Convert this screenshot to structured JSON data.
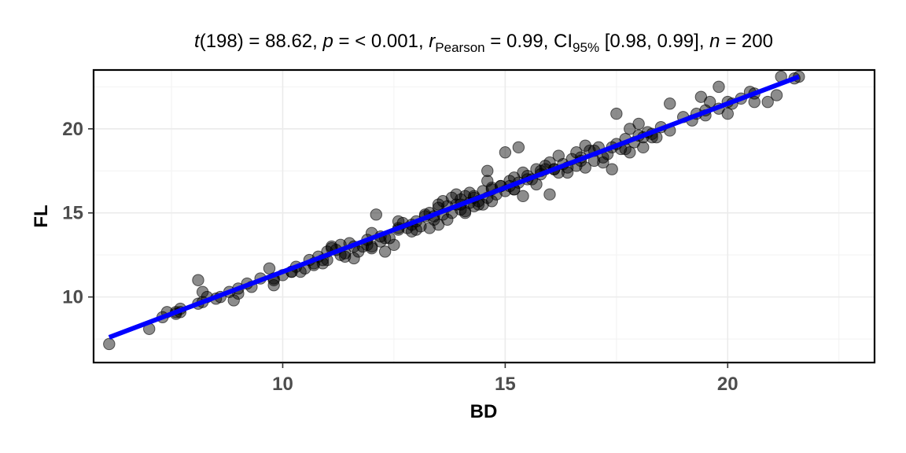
{
  "chart_data": {
    "type": "scatter",
    "title": {
      "t_sym": "t",
      "t_part": "(198) = 88.62, ",
      "p_sym": "p",
      "p_part": " = < 0.001, ",
      "r_sym": "r",
      "r_sub": "Pearson",
      "r_part": " = 0.99, CI",
      "ci_sub": "95%",
      "ci_part": " [0.98, 0.99], ",
      "n_sym": "n",
      "n_part": " = 200"
    },
    "xlabel": "BD",
    "ylabel": "FL",
    "xlim": [
      5.75,
      23.3
    ],
    "ylim": [
      6.1,
      23.5
    ],
    "xticks": [
      10,
      15,
      20
    ],
    "yticks": [
      10,
      15,
      20
    ],
    "grid": true,
    "point_color": "#000000",
    "point_opacity": 0.45,
    "line_color": "#0000ff",
    "fit_line": {
      "x": [
        6.1,
        21.6
      ],
      "y": [
        7.6,
        23.1
      ]
    },
    "points": [
      [
        6.1,
        7.2
      ],
      [
        7.0,
        8.1
      ],
      [
        7.3,
        8.8
      ],
      [
        7.4,
        9.1
      ],
      [
        7.6,
        9.0
      ],
      [
        7.6,
        9.1
      ],
      [
        7.7,
        9.3
      ],
      [
        8.1,
        9.6
      ],
      [
        8.2,
        10.3
      ],
      [
        8.1,
        11.0
      ],
      [
        8.3,
        10.0
      ],
      [
        8.5,
        9.9
      ],
      [
        8.8,
        10.3
      ],
      [
        8.9,
        9.8
      ],
      [
        9.0,
        10.2
      ],
      [
        9.2,
        10.8
      ],
      [
        9.3,
        10.6
      ],
      [
        9.5,
        11.1
      ],
      [
        9.7,
        11.7
      ],
      [
        9.8,
        11.1
      ],
      [
        9.8,
        10.7
      ],
      [
        10.0,
        11.3
      ],
      [
        10.2,
        11.5
      ],
      [
        10.3,
        11.8
      ],
      [
        10.4,
        11.5
      ],
      [
        10.5,
        11.7
      ],
      [
        10.7,
        11.9
      ],
      [
        10.8,
        12.4
      ],
      [
        10.9,
        12.0
      ],
      [
        11.0,
        12.7
      ],
      [
        11.0,
        12.2
      ],
      [
        11.1,
        13.0
      ],
      [
        11.2,
        12.8
      ],
      [
        11.3,
        12.5
      ],
      [
        11.3,
        13.1
      ],
      [
        11.4,
        12.6
      ],
      [
        11.5,
        13.2
      ],
      [
        11.6,
        12.3
      ],
      [
        11.7,
        12.7
      ],
      [
        11.8,
        13.0
      ],
      [
        11.9,
        13.4
      ],
      [
        12.0,
        12.9
      ],
      [
        12.0,
        13.8
      ],
      [
        12.1,
        14.9
      ],
      [
        12.2,
        13.3
      ],
      [
        12.3,
        12.7
      ],
      [
        12.4,
        13.5
      ],
      [
        12.5,
        13.1
      ],
      [
        12.6,
        14.1
      ],
      [
        12.7,
        14.4
      ],
      [
        12.8,
        14.1
      ],
      [
        12.9,
        14.3
      ],
      [
        13.0,
        14.5
      ],
      [
        13.1,
        14.2
      ],
      [
        13.2,
        14.8
      ],
      [
        13.3,
        14.1
      ],
      [
        13.3,
        15.0
      ],
      [
        13.4,
        14.6
      ],
      [
        13.5,
        14.3
      ],
      [
        13.5,
        15.3
      ],
      [
        13.6,
        14.9
      ],
      [
        13.7,
        15.4
      ],
      [
        13.8,
        15.0
      ],
      [
        13.8,
        15.9
      ],
      [
        13.9,
        15.5
      ],
      [
        14.0,
        15.2
      ],
      [
        14.0,
        15.8
      ],
      [
        14.1,
        15.0
      ],
      [
        14.1,
        16.0
      ],
      [
        14.2,
        15.6
      ],
      [
        14.2,
        16.2
      ],
      [
        14.3,
        15.4
      ],
      [
        14.3,
        15.9
      ],
      [
        14.4,
        15.7
      ],
      [
        14.5,
        16.3
      ],
      [
        14.5,
        15.5
      ],
      [
        14.6,
        16.9
      ],
      [
        14.6,
        17.5
      ],
      [
        14.7,
        15.7
      ],
      [
        14.7,
        16.5
      ],
      [
        14.8,
        16.1
      ],
      [
        14.9,
        16.6
      ],
      [
        15.0,
        16.3
      ],
      [
        15.0,
        18.6
      ],
      [
        15.1,
        16.9
      ],
      [
        15.2,
        16.4
      ],
      [
        15.2,
        17.1
      ],
      [
        15.3,
        16.8
      ],
      [
        15.3,
        18.9
      ],
      [
        15.4,
        16.0
      ],
      [
        15.4,
        17.4
      ],
      [
        15.5,
        17.2
      ],
      [
        15.6,
        17.0
      ],
      [
        15.7,
        16.7
      ],
      [
        15.7,
        17.6
      ],
      [
        15.8,
        17.3
      ],
      [
        15.9,
        17.8
      ],
      [
        16.0,
        16.1
      ],
      [
        16.0,
        18.0
      ],
      [
        16.1,
        17.6
      ],
      [
        16.2,
        18.4
      ],
      [
        16.3,
        17.9
      ],
      [
        16.4,
        17.4
      ],
      [
        16.5,
        18.2
      ],
      [
        16.6,
        17.8
      ],
      [
        16.6,
        18.6
      ],
      [
        16.7,
        18.3
      ],
      [
        16.8,
        19.0
      ],
      [
        16.8,
        17.7
      ],
      [
        16.9,
        18.7
      ],
      [
        17.0,
        18.1
      ],
      [
        17.1,
        18.9
      ],
      [
        17.2,
        18.0
      ],
      [
        17.3,
        18.5
      ],
      [
        17.4,
        17.6
      ],
      [
        17.5,
        19.1
      ],
      [
        17.5,
        20.9
      ],
      [
        17.6,
        18.8
      ],
      [
        17.7,
        19.4
      ],
      [
        17.8,
        18.6
      ],
      [
        17.8,
        20.0
      ],
      [
        17.9,
        19.2
      ],
      [
        18.0,
        19.6
      ],
      [
        18.0,
        20.3
      ],
      [
        18.1,
        18.9
      ],
      [
        18.2,
        19.8
      ],
      [
        18.3,
        19.5
      ],
      [
        18.5,
        20.1
      ],
      [
        18.7,
        19.9
      ],
      [
        18.7,
        21.5
      ],
      [
        19.0,
        20.7
      ],
      [
        19.2,
        20.5
      ],
      [
        19.3,
        20.9
      ],
      [
        19.4,
        21.9
      ],
      [
        19.5,
        21.1
      ],
      [
        19.6,
        21.6
      ],
      [
        19.8,
        22.5
      ],
      [
        20.0,
        20.9
      ],
      [
        20.1,
        21.5
      ],
      [
        20.3,
        21.8
      ],
      [
        20.5,
        22.2
      ],
      [
        20.6,
        21.6
      ],
      [
        20.9,
        21.6
      ],
      [
        21.1,
        22.0
      ],
      [
        21.2,
        23.1
      ],
      [
        21.5,
        23.0
      ],
      [
        21.6,
        23.1
      ],
      [
        19.8,
        21.2
      ],
      [
        20.0,
        21.6
      ],
      [
        13.5,
        15.5
      ],
      [
        14.1,
        15.1
      ],
      [
        12.9,
        13.9
      ],
      [
        11.1,
        12.9
      ],
      [
        10.2,
        11.5
      ],
      [
        9.8,
        11.0
      ],
      [
        8.2,
        9.7
      ],
      [
        15.8,
        17.5
      ],
      [
        16.4,
        17.7
      ],
      [
        17.2,
        18.3
      ],
      [
        18.3,
        19.7
      ],
      [
        12.6,
        14.0
      ],
      [
        13.0,
        14.0
      ],
      [
        14.4,
        15.5
      ],
      [
        15.1,
        16.6
      ],
      [
        11.6,
        13.0
      ],
      [
        10.6,
        12.2
      ],
      [
        16.2,
        17.4
      ],
      [
        17.7,
        18.8
      ],
      [
        13.7,
        14.6
      ],
      [
        12.3,
        13.5
      ],
      [
        14.6,
        15.9
      ],
      [
        15.5,
        17.0
      ],
      [
        18.1,
        19.5
      ],
      [
        16.7,
        18.1
      ],
      [
        11.9,
        13.1
      ],
      [
        13.2,
        14.9
      ],
      [
        14.9,
        16.6
      ],
      [
        13.9,
        16.1
      ],
      [
        14.3,
        16.0
      ],
      [
        12.6,
        14.5
      ],
      [
        11.4,
        12.4
      ],
      [
        10.9,
        12.2
      ],
      [
        9.0,
        10.5
      ],
      [
        8.6,
        10.0
      ],
      [
        7.7,
        9.1
      ],
      [
        13.4,
        14.8
      ],
      [
        14.0,
        15.5
      ],
      [
        15.2,
        16.4
      ],
      [
        16.1,
        17.6
      ],
      [
        17.0,
        18.7
      ],
      [
        18.4,
        19.5
      ],
      [
        19.5,
        20.8
      ],
      [
        20.6,
        22.1
      ],
      [
        12.2,
        13.6
      ],
      [
        10.7,
        12.0
      ],
      [
        12.0,
        13.0
      ],
      [
        13.6,
        15.7
      ],
      [
        14.7,
        16.4
      ],
      [
        15.9,
        17.6
      ],
      [
        17.4,
        18.9
      ]
    ]
  }
}
